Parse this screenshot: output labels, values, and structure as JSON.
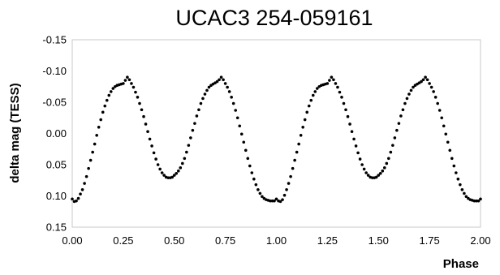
{
  "chart_data": {
    "type": "scatter",
    "title": "UCAC3 254-059161",
    "xlabel": "Phase",
    "ylabel": "delta mag (TESS)",
    "xlim": [
      0,
      2
    ],
    "ylim": [
      -0.15,
      0.15
    ],
    "y_inverted": true,
    "grid": false,
    "legend": "none",
    "x_ticks": [
      {
        "value": 0,
        "label": "0.00"
      },
      {
        "value": 0.25,
        "label": "0.25"
      },
      {
        "value": 0.5,
        "label": "0.50"
      },
      {
        "value": 0.75,
        "label": "0.75"
      },
      {
        "value": 1,
        "label": "1.00"
      },
      {
        "value": 1.25,
        "label": "1.25"
      },
      {
        "value": 1.5,
        "label": "1.50"
      },
      {
        "value": 1.75,
        "label": "1.75"
      },
      {
        "value": 2,
        "label": "2.00"
      }
    ],
    "y_ticks": [
      {
        "value": -0.15,
        "label": "-0.15"
      },
      {
        "value": -0.1,
        "label": "-0.10"
      },
      {
        "value": -0.05,
        "label": "-0.05"
      },
      {
        "value": 0,
        "label": "0.00"
      },
      {
        "value": 0.05,
        "label": "0.05"
      },
      {
        "value": 0.1,
        "label": "0.10"
      },
      {
        "value": 0.15,
        "label": "0.15"
      }
    ],
    "marker_color": "#000000",
    "series": [
      {
        "points": [
          [
            0.0,
            0.105
          ],
          [
            0.01,
            0.109
          ],
          [
            0.02,
            0.108
          ],
          [
            0.03,
            0.104
          ],
          [
            0.04,
            0.097
          ],
          [
            0.05,
            0.09
          ],
          [
            0.06,
            0.08
          ],
          [
            0.07,
            0.069
          ],
          [
            0.08,
            0.056
          ],
          [
            0.09,
            0.043
          ],
          [
            0.1,
            0.03
          ],
          [
            0.11,
            0.017
          ],
          [
            0.12,
            0.003
          ],
          [
            0.13,
            -0.01
          ],
          [
            0.14,
            -0.022
          ],
          [
            0.15,
            -0.034
          ],
          [
            0.16,
            -0.044
          ],
          [
            0.17,
            -0.053
          ],
          [
            0.18,
            -0.061
          ],
          [
            0.19,
            -0.067
          ],
          [
            0.2,
            -0.072
          ],
          [
            0.21,
            -0.075
          ],
          [
            0.22,
            -0.077
          ],
          [
            0.23,
            -0.078
          ],
          [
            0.24,
            -0.079
          ],
          [
            0.25,
            -0.08
          ],
          [
            0.26,
            -0.085
          ],
          [
            0.27,
            -0.09
          ],
          [
            0.28,
            -0.086
          ],
          [
            0.29,
            -0.08
          ],
          [
            0.3,
            -0.074
          ],
          [
            0.31,
            -0.066
          ],
          [
            0.32,
            -0.058
          ],
          [
            0.33,
            -0.048
          ],
          [
            0.34,
            -0.038
          ],
          [
            0.35,
            -0.027
          ],
          [
            0.36,
            -0.015
          ],
          [
            0.37,
            -0.003
          ],
          [
            0.38,
            0.009
          ],
          [
            0.39,
            0.02
          ],
          [
            0.4,
            0.031
          ],
          [
            0.41,
            0.041
          ],
          [
            0.42,
            0.05
          ],
          [
            0.43,
            0.057
          ],
          [
            0.44,
            0.063
          ],
          [
            0.45,
            0.067
          ],
          [
            0.46,
            0.07
          ],
          [
            0.47,
            0.071
          ],
          [
            0.48,
            0.071
          ],
          [
            0.49,
            0.07
          ],
          [
            0.5,
            0.067
          ],
          [
            0.51,
            0.064
          ],
          [
            0.52,
            0.06
          ],
          [
            0.53,
            0.055
          ],
          [
            0.54,
            0.048
          ],
          [
            0.55,
            0.04
          ],
          [
            0.56,
            0.03
          ],
          [
            0.57,
            0.019
          ],
          [
            0.58,
            0.007
          ],
          [
            0.59,
            -0.005
          ],
          [
            0.6,
            -0.016
          ],
          [
            0.61,
            -0.028
          ],
          [
            0.62,
            -0.038
          ],
          [
            0.63,
            -0.048
          ],
          [
            0.64,
            -0.056
          ],
          [
            0.65,
            -0.063
          ],
          [
            0.66,
            -0.069
          ],
          [
            0.67,
            -0.074
          ],
          [
            0.68,
            -0.077
          ],
          [
            0.69,
            -0.079
          ],
          [
            0.7,
            -0.081
          ],
          [
            0.71,
            -0.083
          ],
          [
            0.72,
            -0.086
          ],
          [
            0.73,
            -0.09
          ],
          [
            0.74,
            -0.086
          ],
          [
            0.75,
            -0.08
          ],
          [
            0.76,
            -0.074
          ],
          [
            0.77,
            -0.067
          ],
          [
            0.78,
            -0.058
          ],
          [
            0.79,
            -0.048
          ],
          [
            0.8,
            -0.037
          ],
          [
            0.81,
            -0.025
          ],
          [
            0.82,
            -0.012
          ],
          [
            0.83,
            0.001
          ],
          [
            0.84,
            0.014
          ],
          [
            0.85,
            0.027
          ],
          [
            0.86,
            0.04
          ],
          [
            0.87,
            0.052
          ],
          [
            0.88,
            0.063
          ],
          [
            0.89,
            0.073
          ],
          [
            0.9,
            0.082
          ],
          [
            0.91,
            0.09
          ],
          [
            0.92,
            0.096
          ],
          [
            0.93,
            0.101
          ],
          [
            0.94,
            0.104
          ],
          [
            0.95,
            0.106
          ],
          [
            0.96,
            0.107
          ],
          [
            0.97,
            0.108
          ],
          [
            0.98,
            0.108
          ],
          [
            0.99,
            0.108
          ],
          [
            1.0,
            0.105
          ],
          [
            1.01,
            0.108
          ],
          [
            1.02,
            0.109
          ],
          [
            1.03,
            0.106
          ],
          [
            1.04,
            0.099
          ],
          [
            1.05,
            0.09
          ],
          [
            1.06,
            0.08
          ],
          [
            1.07,
            0.069
          ],
          [
            1.08,
            0.056
          ],
          [
            1.09,
            0.043
          ],
          [
            1.1,
            0.03
          ],
          [
            1.11,
            0.017
          ],
          [
            1.12,
            0.003
          ],
          [
            1.13,
            -0.01
          ],
          [
            1.14,
            -0.022
          ],
          [
            1.15,
            -0.034
          ],
          [
            1.16,
            -0.044
          ],
          [
            1.17,
            -0.053
          ],
          [
            1.18,
            -0.061
          ],
          [
            1.19,
            -0.067
          ],
          [
            1.2,
            -0.072
          ],
          [
            1.21,
            -0.075
          ],
          [
            1.22,
            -0.077
          ],
          [
            1.23,
            -0.078
          ],
          [
            1.24,
            -0.079
          ],
          [
            1.25,
            -0.08
          ],
          [
            1.26,
            -0.085
          ],
          [
            1.27,
            -0.09
          ],
          [
            1.28,
            -0.086
          ],
          [
            1.29,
            -0.08
          ],
          [
            1.3,
            -0.074
          ],
          [
            1.31,
            -0.066
          ],
          [
            1.32,
            -0.058
          ],
          [
            1.33,
            -0.048
          ],
          [
            1.34,
            -0.038
          ],
          [
            1.35,
            -0.027
          ],
          [
            1.36,
            -0.015
          ],
          [
            1.37,
            -0.003
          ],
          [
            1.38,
            0.009
          ],
          [
            1.39,
            0.02
          ],
          [
            1.4,
            0.031
          ],
          [
            1.41,
            0.041
          ],
          [
            1.42,
            0.05
          ],
          [
            1.43,
            0.057
          ],
          [
            1.44,
            0.063
          ],
          [
            1.45,
            0.067
          ],
          [
            1.46,
            0.07
          ],
          [
            1.47,
            0.071
          ],
          [
            1.48,
            0.071
          ],
          [
            1.49,
            0.07
          ],
          [
            1.5,
            0.067
          ],
          [
            1.51,
            0.064
          ],
          [
            1.52,
            0.06
          ],
          [
            1.53,
            0.055
          ],
          [
            1.54,
            0.048
          ],
          [
            1.55,
            0.04
          ],
          [
            1.56,
            0.03
          ],
          [
            1.57,
            0.019
          ],
          [
            1.58,
            0.007
          ],
          [
            1.59,
            -0.005
          ],
          [
            1.6,
            -0.016
          ],
          [
            1.61,
            -0.028
          ],
          [
            1.62,
            -0.038
          ],
          [
            1.63,
            -0.048
          ],
          [
            1.64,
            -0.056
          ],
          [
            1.65,
            -0.063
          ],
          [
            1.66,
            -0.069
          ],
          [
            1.67,
            -0.074
          ],
          [
            1.68,
            -0.077
          ],
          [
            1.69,
            -0.079
          ],
          [
            1.7,
            -0.081
          ],
          [
            1.71,
            -0.083
          ],
          [
            1.72,
            -0.086
          ],
          [
            1.73,
            -0.09
          ],
          [
            1.74,
            -0.086
          ],
          [
            1.75,
            -0.08
          ],
          [
            1.76,
            -0.074
          ],
          [
            1.77,
            -0.067
          ],
          [
            1.78,
            -0.058
          ],
          [
            1.79,
            -0.048
          ],
          [
            1.8,
            -0.037
          ],
          [
            1.81,
            -0.025
          ],
          [
            1.82,
            -0.012
          ],
          [
            1.83,
            0.001
          ],
          [
            1.84,
            0.014
          ],
          [
            1.85,
            0.027
          ],
          [
            1.86,
            0.04
          ],
          [
            1.87,
            0.052
          ],
          [
            1.88,
            0.063
          ],
          [
            1.89,
            0.073
          ],
          [
            1.9,
            0.082
          ],
          [
            1.91,
            0.09
          ],
          [
            1.92,
            0.096
          ],
          [
            1.93,
            0.101
          ],
          [
            1.94,
            0.104
          ],
          [
            1.95,
            0.106
          ],
          [
            1.96,
            0.107
          ],
          [
            1.97,
            0.108
          ],
          [
            1.98,
            0.108
          ],
          [
            1.99,
            0.108
          ],
          [
            2.0,
            0.105
          ]
        ]
      }
    ]
  }
}
